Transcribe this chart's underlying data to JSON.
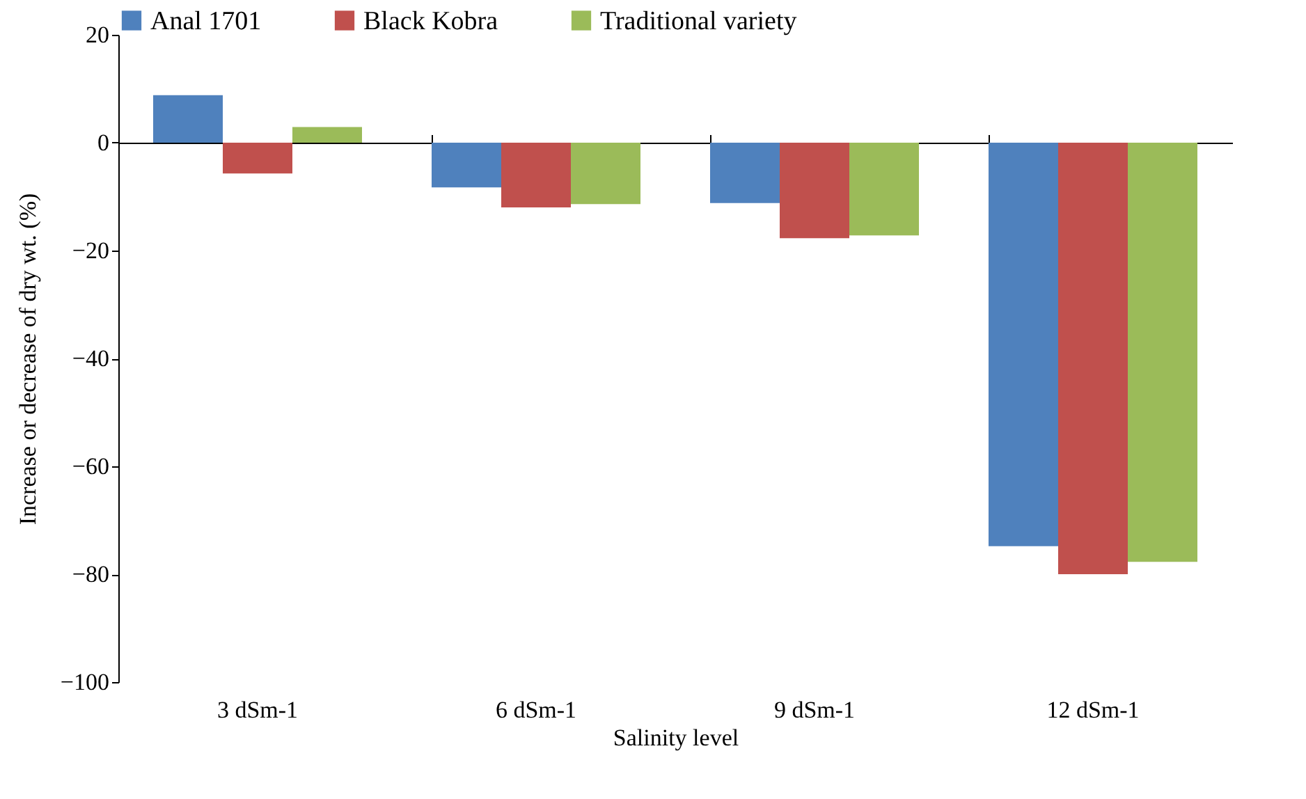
{
  "chart_data": {
    "type": "bar",
    "xlabel": "Salinity level",
    "ylabel": "Increase or decrease of dry wt. (%)",
    "categories": [
      "3 dSm-1",
      "6 dSm-1",
      "9 dSm-1",
      "12 dSm-1"
    ],
    "series": [
      {
        "name": "Anal 1701",
        "color": "#4f81bd",
        "values": [
          8.8,
          -8.3,
          -11.2,
          -74.8
        ]
      },
      {
        "name": "Black Kobra",
        "color": "#c0504d",
        "values": [
          -5.7,
          -12,
          -17.7,
          -80
        ]
      },
      {
        "name": "Traditional variety",
        "color": "#9bbb59",
        "values": [
          2.9,
          -11.4,
          -17.2,
          -77.7
        ]
      }
    ],
    "ylim": [
      -100,
      20
    ],
    "yticks": [
      -100,
      -80,
      -60,
      -40,
      -20,
      0,
      20
    ],
    "legend": "top"
  }
}
